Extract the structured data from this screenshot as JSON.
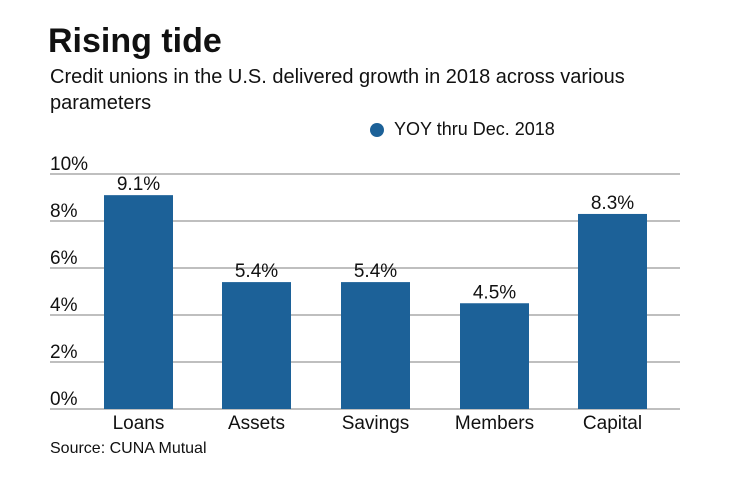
{
  "chart_data": {
    "type": "bar",
    "title": "Rising tide",
    "subtitle": "Credit unions in the U.S. delivered growth in 2018 across various parameters",
    "categories": [
      "Loans",
      "Assets",
      "Savings",
      "Members",
      "Capital"
    ],
    "series": [
      {
        "name": "YOY thru Dec. 2018",
        "values": [
          9.1,
          5.4,
          5.4,
          4.5,
          8.3
        ]
      }
    ],
    "data_labels": [
      "9.1%",
      "5.4%",
      "5.4%",
      "4.5%",
      "8.3%"
    ],
    "yticks": [
      "0%",
      "2%",
      "4%",
      "6%",
      "8%",
      "10%"
    ],
    "ylim": [
      0,
      10
    ],
    "grid": true,
    "legend": "top-right",
    "color": "#1c6198",
    "source": "Source: CUNA Mutual"
  }
}
